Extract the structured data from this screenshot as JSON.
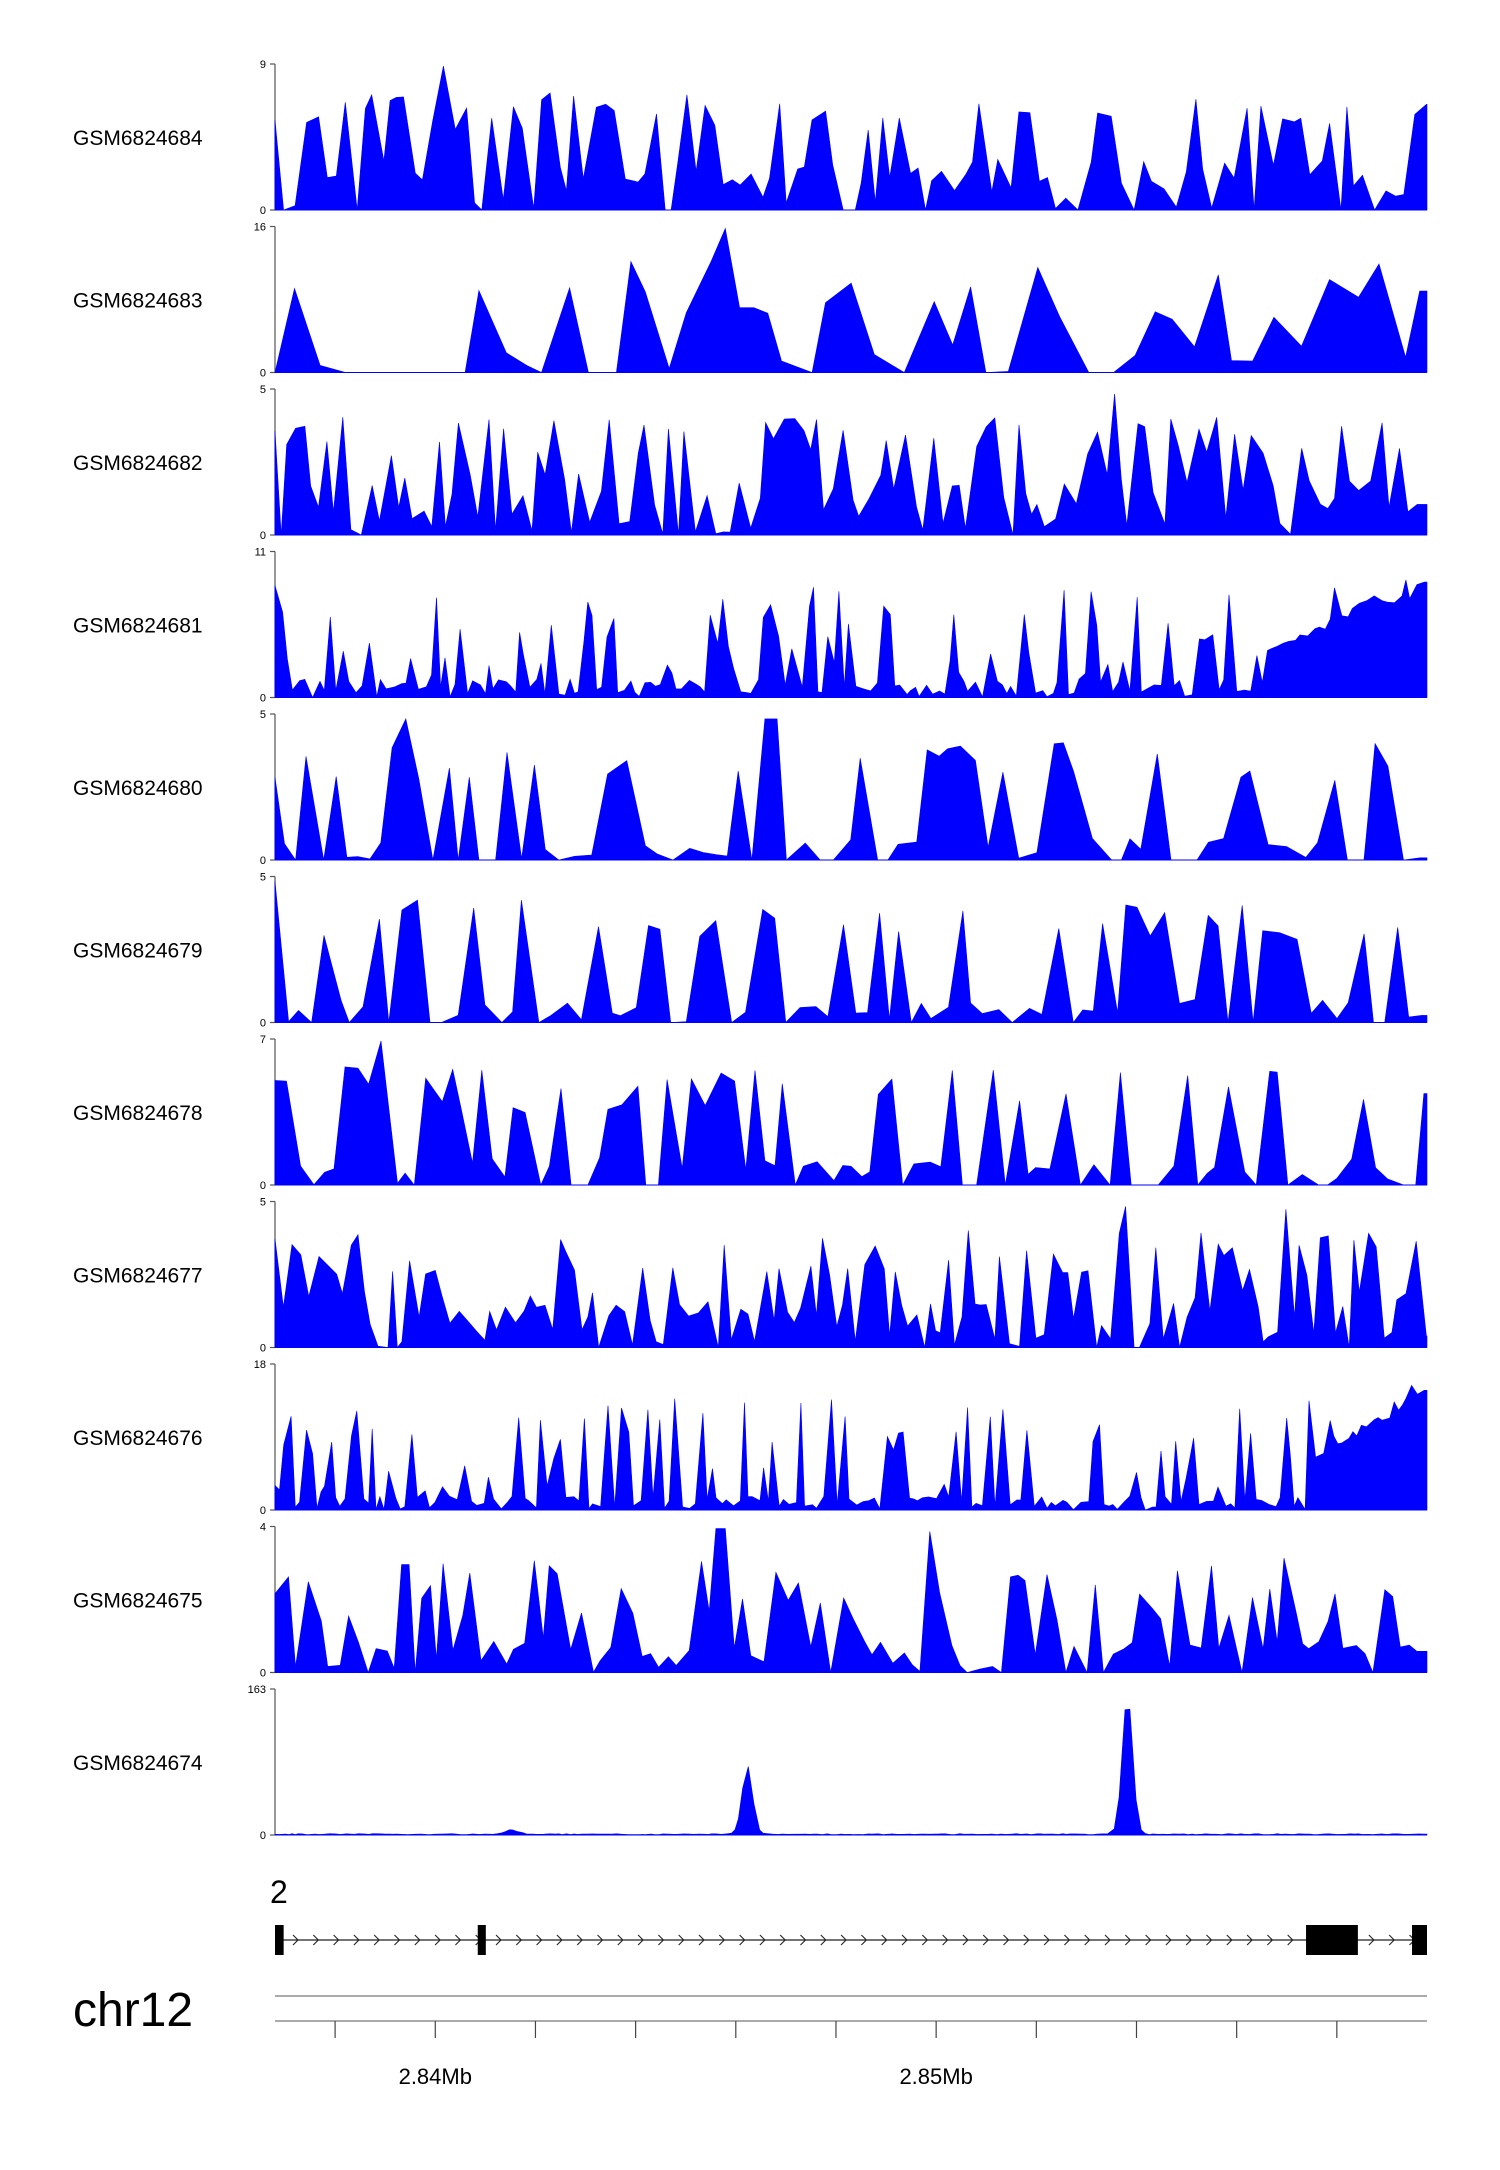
{
  "chart_data": {
    "type": "area",
    "color": "#0000ff",
    "tracks": [
      {
        "name": "GSM6824684",
        "ymax": 9,
        "ymin": 0,
        "seed": 11,
        "peaks": [
          [
            0.147,
            1.0
          ]
        ],
        "base": 0.22,
        "spike": 0.55,
        "step": 0.0085,
        "gap": 0.1
      },
      {
        "name": "GSM6824683",
        "ymax": 16,
        "ymin": 0,
        "seed": 23,
        "peaks": [
          [
            0.393,
            1.0
          ],
          [
            0.41,
            0.45
          ]
        ],
        "base": 0.12,
        "spike": 0.35,
        "step": 0.019,
        "gap": 0.35
      },
      {
        "name": "GSM6824682",
        "ymax": 5,
        "ymin": 0,
        "seed": 37,
        "peaks": [
          [
            0.73,
            0.98
          ]
        ],
        "base": 0.28,
        "spike": 0.55,
        "step": 0.0075,
        "gap": 0.05
      },
      {
        "name": "GSM6824681",
        "ymax": 11,
        "ymin": 0,
        "seed": 41,
        "peaks": [
          [
            0.29,
            0.42
          ]
        ],
        "base": 0.08,
        "spike": 0.14,
        "step": 0.005,
        "gap": 0.0,
        "rise": [
          0.86,
          1.0,
          0.32,
          0.9
        ]
      },
      {
        "name": "GSM6824680",
        "ymax": 5,
        "ymin": 0,
        "seed": 53,
        "peaks": [
          [
            0.117,
            0.98
          ],
          [
            0.43,
            0.98
          ]
        ],
        "base": 0.1,
        "spike": 0.55,
        "step": 0.012,
        "gap": 0.25
      },
      {
        "name": "GSM6824679",
        "ymax": 5,
        "ymin": 0,
        "seed": 61,
        "peaks": [
          [
            0.002,
            0.98
          ],
          [
            0.12,
            0.85
          ],
          [
            0.22,
            0.85
          ]
        ],
        "base": 0.1,
        "spike": 0.55,
        "step": 0.011,
        "gap": 0.25
      },
      {
        "name": "GSM6824678",
        "ymax": 7,
        "ymin": 0,
        "seed": 71,
        "peaks": [
          [
            0.088,
            1.0
          ],
          [
            0.065,
            0.82
          ]
        ],
        "base": 0.12,
        "spike": 0.5,
        "step": 0.0105,
        "gap": 0.2
      },
      {
        "name": "GSM6824677",
        "ymax": 5,
        "ymin": 0,
        "seed": 83,
        "peaks": [
          [
            0.737,
            0.98
          ],
          [
            0.88,
            0.96
          ]
        ],
        "base": 0.25,
        "spike": 0.5,
        "step": 0.0065,
        "gap": 0.05
      },
      {
        "name": "GSM6824676",
        "ymax": 18,
        "ymin": 0,
        "seed": 97,
        "peaks": [],
        "base": 0.06,
        "spike": 0.12,
        "step": 0.005,
        "gap": 0.0,
        "rise": [
          0.9,
          1.0,
          0.35,
          0.95
        ]
      },
      {
        "name": "GSM6824675",
        "ymax": 4,
        "ymin": 0,
        "seed": 101,
        "peaks": [
          [
            0.386,
            1.0
          ],
          [
            0.568,
            0.98
          ],
          [
            0.112,
            0.75
          ]
        ],
        "base": 0.15,
        "spike": 0.35,
        "step": 0.0085,
        "gap": 0.1
      },
      {
        "name": "GSM6824674",
        "ymax": 163,
        "ymin": 0,
        "seed": 113,
        "gauss": [
          [
            0.41,
            0.0045,
            0.48
          ],
          [
            0.74,
            0.0045,
            0.97
          ],
          [
            0.205,
            0.006,
            0.03
          ]
        ],
        "base": 0.006,
        "spike": 0.0,
        "step": 0.004,
        "gap": 0.0
      }
    ],
    "gene": {
      "label": "2",
      "exons": [
        [
          0.0,
          0.0075
        ],
        [
          0.176,
          0.183
        ],
        [
          0.895,
          0.94
        ],
        [
          0.987,
          1.0
        ]
      ]
    },
    "chromosome": "chr12",
    "xaxis": {
      "start_mb": 2.8368,
      "end_mb": 2.8598,
      "minor_tick_step_mb": 0.002,
      "labeled_ticks": [
        {
          "value": 2.84,
          "label": "2.84Mb"
        },
        {
          "value": 2.85,
          "label": "2.85Mb"
        }
      ]
    }
  }
}
